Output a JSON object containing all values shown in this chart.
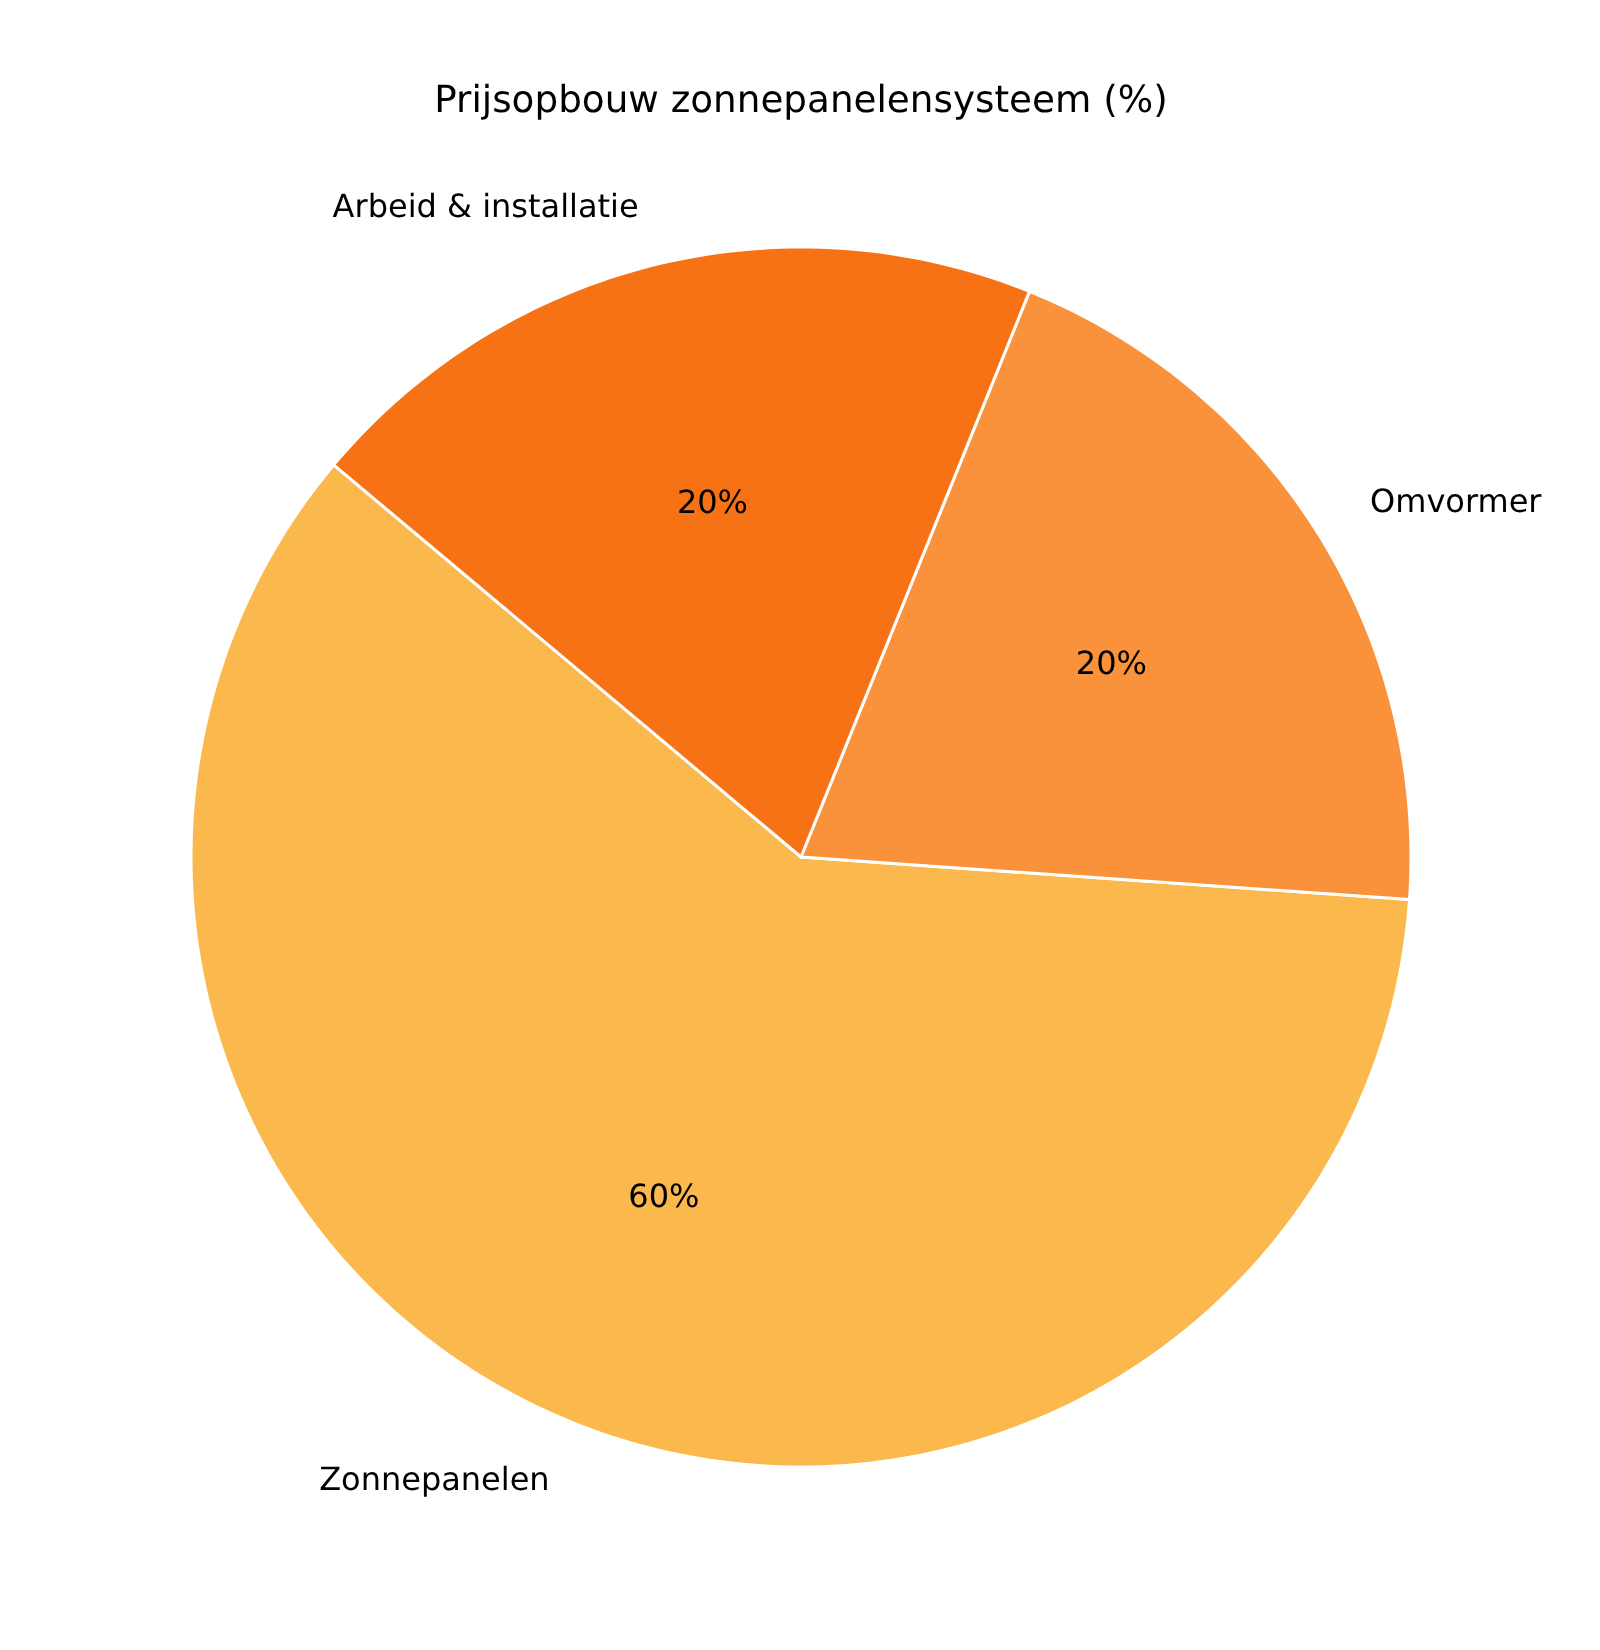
{
  "chart_data": {
    "type": "pie",
    "title": "Prijsopbouw zonnepanelensysteem (%)",
    "categories": [
      "Zonnepanelen",
      "Omvormer",
      "Arbeid & installatie"
    ],
    "values": [
      60,
      20,
      20
    ],
    "colors": [
      "#fbb84c",
      "#f9923b",
      "#f77215"
    ],
    "value_labels": [
      "60%",
      "20%",
      "20%"
    ]
  }
}
